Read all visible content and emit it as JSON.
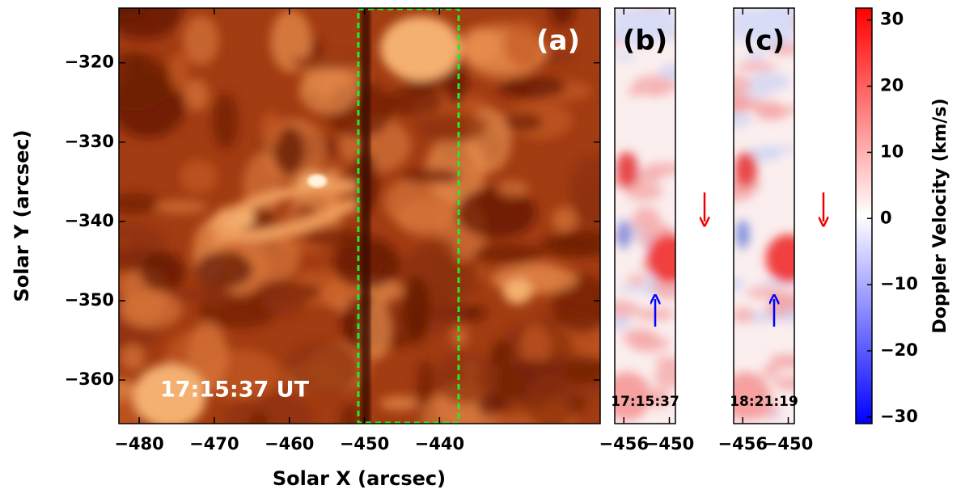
{
  "chart_data": [
    {
      "type": "intensity-map",
      "annotation": "(a)",
      "timestamp": "17:15:37 UT",
      "xlabel": "Solar X (arcsec)",
      "ylabel": "Solar Y (arcsec)",
      "xlim": [
        -482.7,
        -418.6
      ],
      "ylim": [
        -365.5,
        -313.1
      ],
      "xticks": [
        {
          "value": -480,
          "label": "−480"
        },
        {
          "value": -470,
          "label": "−470"
        },
        {
          "value": -460,
          "label": "−460"
        },
        {
          "value": -450,
          "label": "−450"
        },
        {
          "value": -440,
          "label": "−440"
        }
      ],
      "yticks": [
        {
          "value": -320,
          "label": "−320"
        },
        {
          "value": -330,
          "label": "−330"
        },
        {
          "value": -340,
          "label": "−340"
        },
        {
          "value": -350,
          "label": "−350"
        },
        {
          "value": -360,
          "label": "−360"
        }
      ]
    },
    {
      "type": "doppler-map",
      "annotation": "(b)",
      "timestamp": "17:15:37",
      "xlim": [
        -457.2,
        -449.2
      ],
      "ylim": [
        -365.5,
        -313.1
      ],
      "xticks": [
        {
          "value": -456,
          "label": "−456"
        },
        {
          "value": -450,
          "label": "−450"
        }
      ]
    },
    {
      "type": "doppler-map",
      "annotation": "(c)",
      "timestamp": "18:21:19",
      "xlim": [
        -457.2,
        -449.2
      ],
      "ylim": [
        -365.5,
        -313.1
      ],
      "xticks": [
        {
          "value": -456,
          "label": "−456"
        },
        {
          "value": -450,
          "label": "−450"
        }
      ]
    },
    {
      "type": "colorbar",
      "label": "Doppler Velocity (km/s)",
      "colors": [
        "#0000ff",
        "#ffffff",
        "#ff0000"
      ],
      "ylim": [
        -31,
        31.8
      ],
      "yticks": [
        {
          "value": -30,
          "label": "−30"
        },
        {
          "value": -20,
          "label": "−20"
        },
        {
          "value": -10,
          "label": "−10"
        },
        0,
        10,
        20,
        30
      ]
    }
  ]
}
